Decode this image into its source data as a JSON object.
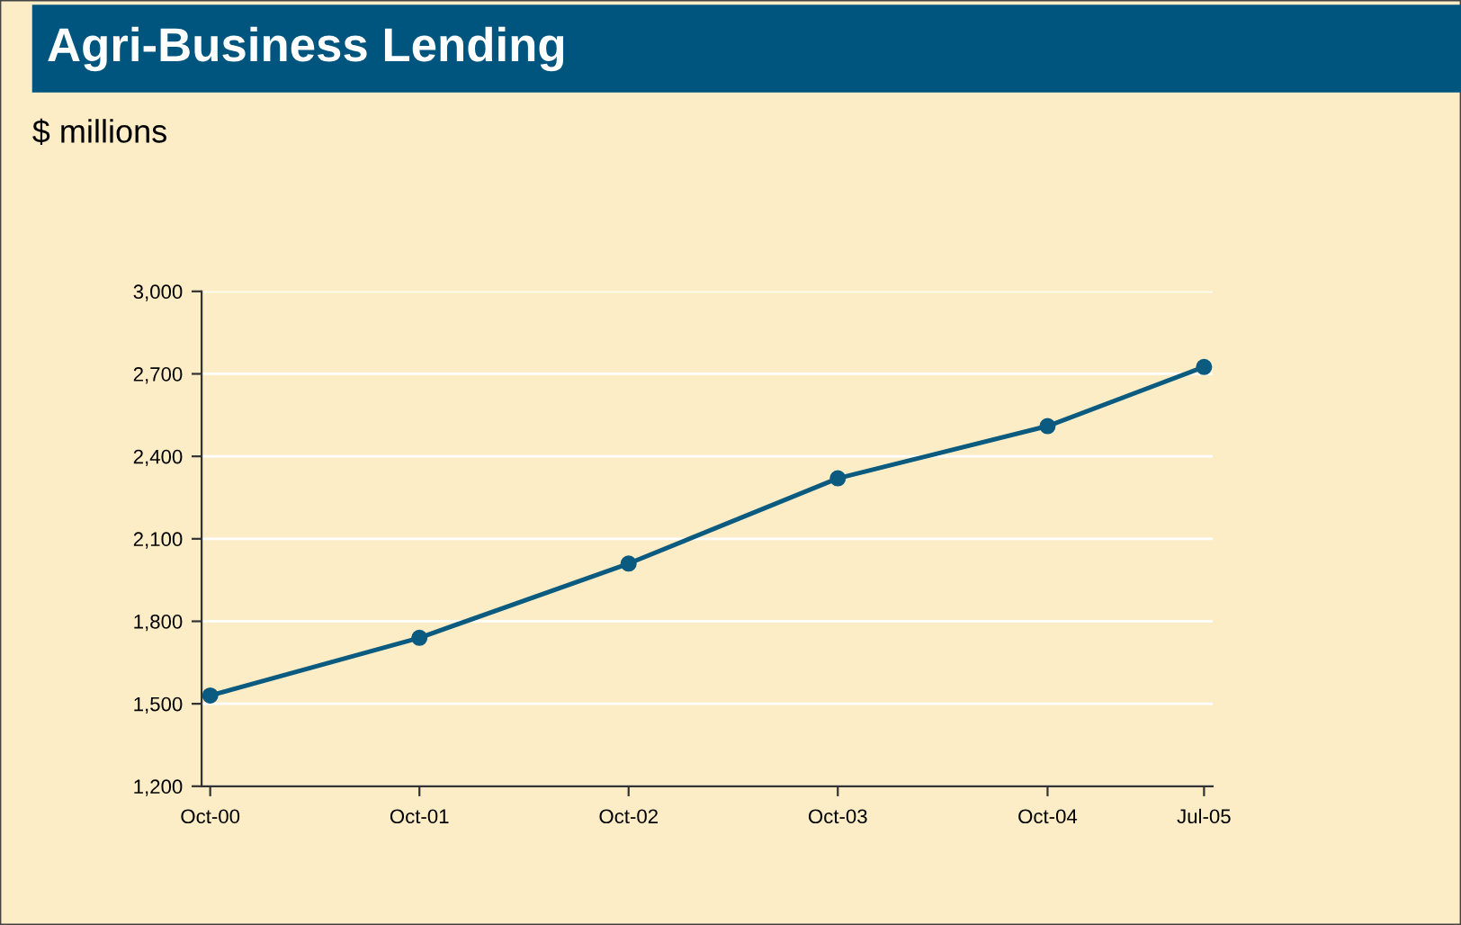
{
  "chart_data": {
    "type": "line",
    "title": "Agri-Business Lending",
    "subtitle": "$ millions",
    "x": [
      "2000-10",
      "2001-10",
      "2002-10",
      "2003-10",
      "2004-10",
      "2005-07"
    ],
    "series": [
      {
        "color": "#0b5a80",
        "values": [
          1530,
          1740,
          2010,
          2320,
          2510,
          2725
        ]
      }
    ],
    "xlim": [
      "2000-09-16",
      "2005-07-16"
    ],
    "xticks": [
      {
        "value": "2000-10",
        "label": "Oct-00"
      },
      {
        "value": "2001-10",
        "label": "Oct-01"
      },
      {
        "value": "2002-10",
        "label": "Oct-02"
      },
      {
        "value": "2003-10",
        "label": "Oct-03"
      },
      {
        "value": "2004-10",
        "label": "Oct-04"
      },
      {
        "value": "2005-07",
        "label": "Jul-05"
      }
    ],
    "ylim": [
      1200,
      3000
    ],
    "yticks": [
      {
        "value": 1200,
        "label": "1,200"
      },
      {
        "value": 1500,
        "label": "1,500"
      },
      {
        "value": 1800,
        "label": "1,800"
      },
      {
        "value": 2100,
        "label": "2,100"
      },
      {
        "value": 2400,
        "label": "2,400"
      },
      {
        "value": 2700,
        "label": "2,700"
      },
      {
        "value": 3000,
        "label": "3,000"
      }
    ],
    "grid": "y",
    "marker": "circle",
    "line_style": "solid"
  }
}
